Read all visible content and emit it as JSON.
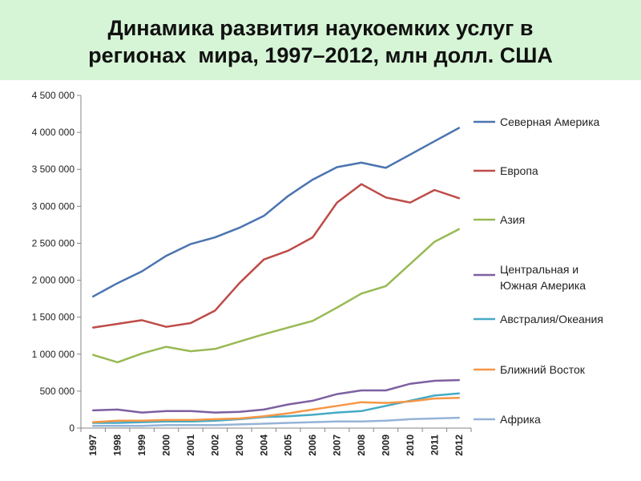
{
  "title": {
    "line1": "Динамика развития наукоемких услуг в",
    "line2": "регионах  мира, 1997–2012, млн долл. США"
  },
  "chart_data": {
    "type": "line",
    "title": "Динамика развития наукоемких услуг в регионах  мира, 1997–2012, млн долл. США",
    "x": [
      1997,
      1998,
      1999,
      2000,
      2001,
      2002,
      2003,
      2004,
      2005,
      2006,
      2007,
      2008,
      2009,
      2010,
      2011,
      2012
    ],
    "ylim": [
      0,
      4500000
    ],
    "yticks": [
      0,
      500000,
      1000000,
      1500000,
      2000000,
      2500000,
      3000000,
      3500000,
      4000000,
      4500000
    ],
    "ytick_labels": [
      "0",
      "500 000",
      "1 000 000",
      "1 500 000",
      "2 000 000",
      "2 500 000",
      "3 000 000",
      "3 500 000",
      "4 000 000",
      "4 500 000"
    ],
    "grid": false,
    "legend_position": "right",
    "series": [
      {
        "name": "Северная Америка",
        "color": "#4a74b0",
        "values": [
          1780000,
          1960000,
          2120000,
          2330000,
          2490000,
          2580000,
          2710000,
          2870000,
          3140000,
          3360000,
          3530000,
          3590000,
          3520000,
          3700000,
          3880000,
          4060000
        ]
      },
      {
        "name": "Европа",
        "color": "#be4b48",
        "values": [
          1360000,
          1410000,
          1460000,
          1370000,
          1420000,
          1590000,
          1960000,
          2280000,
          2400000,
          2580000,
          3050000,
          3300000,
          3120000,
          3050000,
          3220000,
          3110000
        ]
      },
      {
        "name": "Азия",
        "color": "#98b954",
        "values": [
          990000,
          890000,
          1010000,
          1100000,
          1040000,
          1070000,
          1170000,
          1270000,
          1360000,
          1450000,
          1630000,
          1820000,
          1920000,
          2220000,
          2520000,
          2690000
        ]
      },
      {
        "name": "Центральная и\nЮжная Америка",
        "color": "#7d60a0",
        "values": [
          240000,
          250000,
          210000,
          230000,
          230000,
          210000,
          220000,
          250000,
          320000,
          370000,
          460000,
          510000,
          510000,
          600000,
          640000,
          650000
        ]
      },
      {
        "name": "Австралия/Океания",
        "color": "#46aac5",
        "values": [
          70000,
          70000,
          80000,
          90000,
          90000,
          100000,
          120000,
          150000,
          160000,
          180000,
          210000,
          230000,
          300000,
          370000,
          440000,
          470000
        ]
      },
      {
        "name": "Ближний Восток",
        "color": "#f79646",
        "values": [
          80000,
          100000,
          100000,
          110000,
          110000,
          120000,
          130000,
          160000,
          200000,
          250000,
          300000,
          350000,
          340000,
          360000,
          400000,
          410000
        ]
      },
      {
        "name": "Африка",
        "color": "#95b3d7",
        "values": [
          30000,
          30000,
          30000,
          40000,
          40000,
          40000,
          50000,
          60000,
          70000,
          80000,
          90000,
          90000,
          100000,
          120000,
          130000,
          140000
        ]
      }
    ]
  }
}
